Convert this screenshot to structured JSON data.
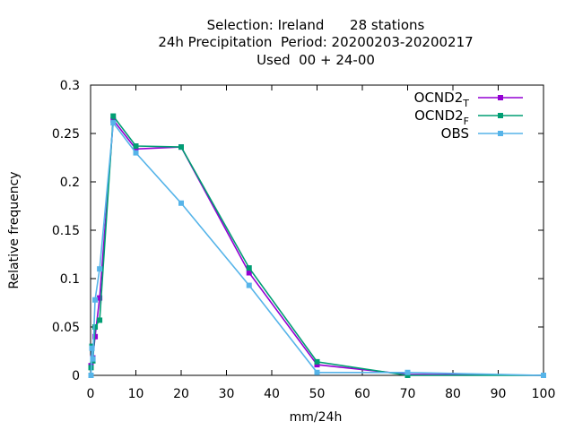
{
  "chart_data": {
    "type": "line",
    "title_lines": [
      "Selection: Ireland      28 stations",
      "24h Precipitation  Period: 20200203-20200217",
      "Used  00 + 24-00"
    ],
    "xlabel": "mm/24h",
    "ylabel": "Relative frequency",
    "xlim": [
      0,
      100
    ],
    "ylim": [
      0,
      0.3
    ],
    "xticks": [
      0,
      10,
      20,
      30,
      40,
      50,
      60,
      70,
      80,
      90,
      100
    ],
    "yticks": [
      0,
      0.05,
      0.1,
      0.15,
      0.2,
      0.25,
      0.3
    ],
    "ytick_labels": [
      "0",
      "0.05",
      "0.1",
      "0.15",
      "0.2",
      "0.25",
      "0.3"
    ],
    "grid": false,
    "legend_position": "top-right",
    "series": [
      {
        "name": "OCND2",
        "subscript": "T",
        "color": "#9400d3",
        "marker": "square",
        "x": [
          0.1,
          0.3,
          0.5,
          1,
          2,
          5,
          10,
          20,
          35,
          50,
          70,
          100
        ],
        "y": [
          0.01,
          0.03,
          0.018,
          0.04,
          0.08,
          0.264,
          0.234,
          0.236,
          0.106,
          0.011,
          0.001,
          0.0
        ]
      },
      {
        "name": "OCND2",
        "subscript": "F",
        "color": "#009e73",
        "marker": "square",
        "x": [
          0.1,
          0.3,
          0.5,
          1,
          2,
          5,
          10,
          20,
          35,
          50,
          70,
          100
        ],
        "y": [
          0.008,
          0.03,
          0.015,
          0.05,
          0.057,
          0.268,
          0.237,
          0.236,
          0.111,
          0.014,
          0.0,
          0.0
        ]
      },
      {
        "name": "OBS",
        "subscript": "",
        "color": "#56b4e9",
        "marker": "square",
        "x": [
          0.1,
          0.3,
          0.5,
          1,
          2,
          5,
          10,
          20,
          35,
          50,
          70,
          100
        ],
        "y": [
          0.0,
          0.028,
          0.017,
          0.078,
          0.11,
          0.261,
          0.23,
          0.178,
          0.093,
          0.003,
          0.003,
          0.0
        ]
      }
    ]
  }
}
